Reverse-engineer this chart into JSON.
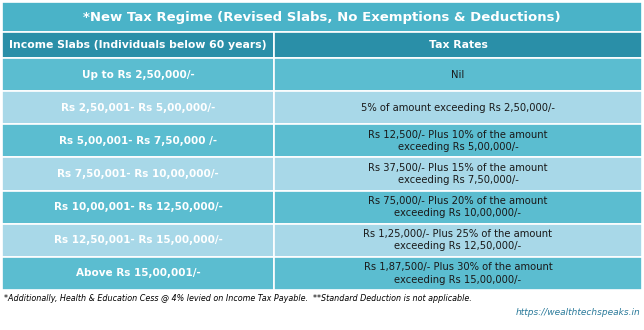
{
  "title": "*New Tax Regime (Revised Slabs, No Exemptions & Deductions)",
  "title_bg": "#4ab3c8",
  "title_color": "white",
  "header_bg": "#2a8fa8",
  "header_color": "white",
  "col1_header": "Income Slabs (Individuals below 60 years)",
  "col2_header": "Tax Rates",
  "rows": [
    {
      "slab": "Up to Rs 2,50,000/-",
      "rate": "Nil",
      "bg": "#5bbdd0"
    },
    {
      "slab": "Rs 2,50,001- Rs 5,00,000/-",
      "rate": "5% of amount exceeding Rs 2,50,000/-",
      "bg": "#a8d8e8"
    },
    {
      "slab": "Rs 5,00,001- Rs 7,50,000 /-",
      "rate": "Rs 12,500/- Plus 10% of the amount\nexceeding Rs 5,00,000/-",
      "bg": "#5bbdd0"
    },
    {
      "slab": "Rs 7,50,001- Rs 10,00,000/-",
      "rate": "Rs 37,500/- Plus 15% of the amount\nexceeding Rs 7,50,000/-",
      "bg": "#a8d8e8"
    },
    {
      "slab": "Rs 10,00,001- Rs 12,50,000/-",
      "rate": "Rs 75,000/- Plus 20% of the amount\nexceeding Rs 10,00,000/-",
      "bg": "#5bbdd0"
    },
    {
      "slab": "Rs 12,50,001- Rs 15,00,000/-",
      "rate": "Rs 1,25,000/- Plus 25% of the amount\nexceeding Rs 12,50,000/-",
      "bg": "#a8d8e8"
    },
    {
      "slab": "Above Rs 15,00,001/-",
      "rate": "Rs 1,87,500/- Plus 30% of the amount\nexceeding Rs 15,00,000/-",
      "bg": "#5bbdd0"
    }
  ],
  "footer_note": "*Additionally, Health & Education Cess @ 4% levied on Income Tax Payable.  **Standard Deduction is not applicable.",
  "footer_url": "https://wealthtechspeaks.in",
  "fig_bg": "#ffffff",
  "border_color": "white",
  "col_split": 0.425
}
